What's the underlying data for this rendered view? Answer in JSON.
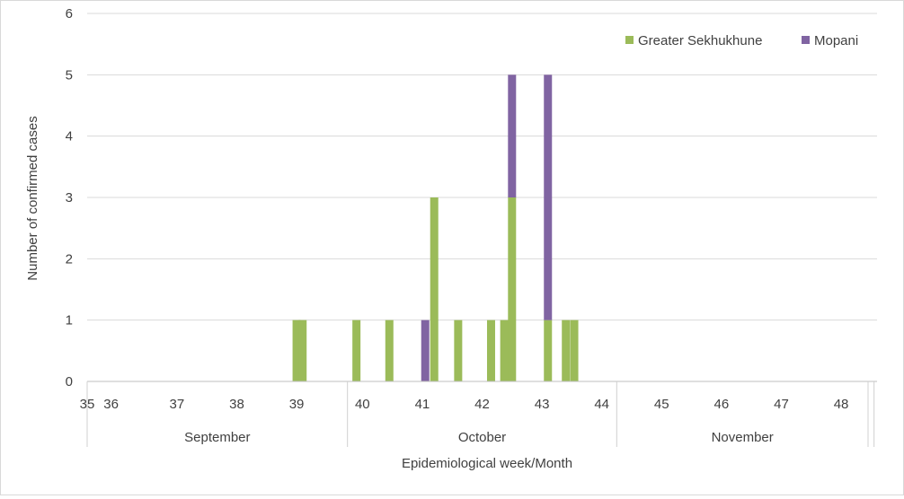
{
  "chart_data": {
    "type": "bar",
    "stacked": true,
    "title": "",
    "xlabel": "Epidemiological week/Month",
    "ylabel": "Number of confirmed cases",
    "ylim": [
      0,
      6
    ],
    "yticks": [
      "0",
      "1",
      "2",
      "3",
      "4",
      "5",
      "6"
    ],
    "xlim": [
      35,
      48.2
    ],
    "week_ticks": [
      {
        "label": "35",
        "week": 35.0
      },
      {
        "label": "36",
        "week": 35.4
      },
      {
        "label": "37",
        "week": 36.5
      },
      {
        "label": "38",
        "week": 37.5
      },
      {
        "label": "39",
        "week": 38.5
      },
      {
        "label": "40",
        "week": 39.6
      },
      {
        "label": "41",
        "week": 40.6
      },
      {
        "label": "42",
        "week": 41.6
      },
      {
        "label": "43",
        "week": 42.6
      },
      {
        "label": "44",
        "week": 43.6
      },
      {
        "label": "45",
        "week": 44.6
      },
      {
        "label": "46",
        "week": 45.6
      },
      {
        "label": "47",
        "week": 46.6
      },
      {
        "label": "48",
        "week": 47.6
      }
    ],
    "months": [
      {
        "label": "September",
        "start": 35.0,
        "end": 39.35
      },
      {
        "label": "October",
        "start": 39.35,
        "end": 43.85
      },
      {
        "label": "November",
        "start": 43.85,
        "end": 48.05
      }
    ],
    "extra_boundaries": [
      48.05,
      48.15
    ],
    "legend": {
      "position": "top-right"
    },
    "colors": {
      "Greater Sekhukhune": "#9bbb59",
      "Mopani": "#8064a2"
    },
    "bars": [
      {
        "x": 38.5,
        "segments": [
          {
            "series": "Greater Sekhukhune",
            "value": 1
          }
        ]
      },
      {
        "x": 38.6,
        "segments": [
          {
            "series": "Greater Sekhukhune",
            "value": 1
          }
        ]
      },
      {
        "x": 39.5,
        "segments": [
          {
            "series": "Greater Sekhukhune",
            "value": 1
          }
        ]
      },
      {
        "x": 40.05,
        "segments": [
          {
            "series": "Greater Sekhukhune",
            "value": 1
          }
        ]
      },
      {
        "x": 40.65,
        "segments": [
          {
            "series": "Mopani",
            "value": 1
          }
        ]
      },
      {
        "x": 40.8,
        "segments": [
          {
            "series": "Greater Sekhukhune",
            "value": 3
          }
        ]
      },
      {
        "x": 41.2,
        "segments": [
          {
            "series": "Greater Sekhukhune",
            "value": 1
          }
        ]
      },
      {
        "x": 41.75,
        "segments": [
          {
            "series": "Greater Sekhukhune",
            "value": 1
          }
        ]
      },
      {
        "x": 41.97,
        "segments": [
          {
            "series": "Greater Sekhukhune",
            "value": 1
          }
        ]
      },
      {
        "x": 42.1,
        "segments": [
          {
            "series": "Greater Sekhukhune",
            "value": 3
          },
          {
            "series": "Mopani",
            "value": 2
          }
        ]
      },
      {
        "x": 42.7,
        "segments": [
          {
            "series": "Greater Sekhukhune",
            "value": 1
          },
          {
            "series": "Mopani",
            "value": 4
          }
        ]
      },
      {
        "x": 43.0,
        "segments": [
          {
            "series": "Greater Sekhukhune",
            "value": 1
          }
        ]
      },
      {
        "x": 43.14,
        "segments": [
          {
            "series": "Greater Sekhukhune",
            "value": 1
          }
        ]
      }
    ],
    "series": [
      {
        "name": "Greater Sekhukhune"
      },
      {
        "name": "Mopani"
      }
    ]
  }
}
